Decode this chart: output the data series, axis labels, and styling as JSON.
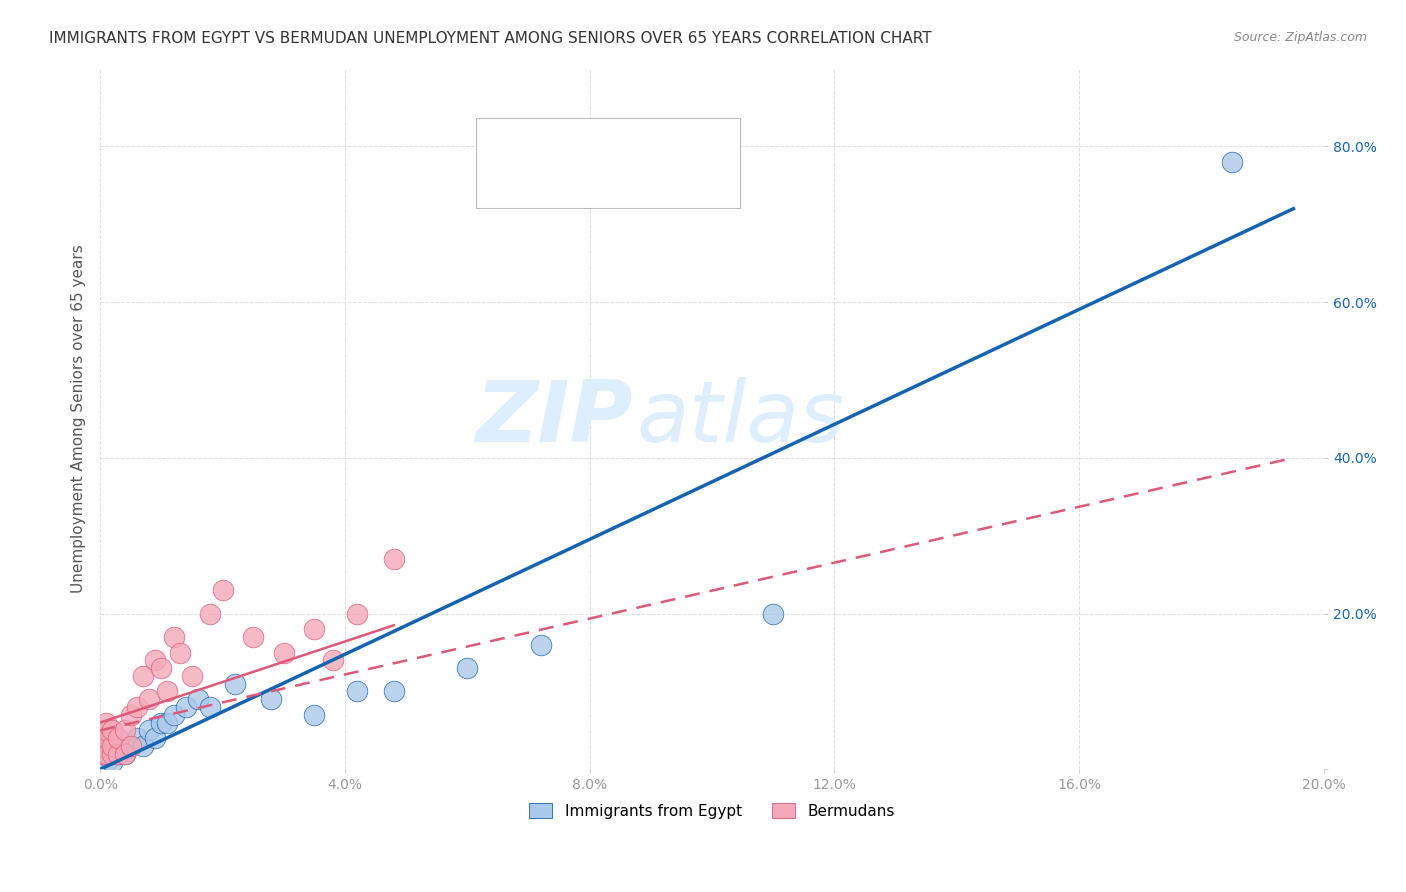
{
  "title": "IMMIGRANTS FROM EGYPT VS BERMUDAN UNEMPLOYMENT AMONG SENIORS OVER 65 YEARS CORRELATION CHART",
  "source": "Source: ZipAtlas.com",
  "ylabel": "Unemployment Among Seniors over 65 years",
  "xlim": [
    0.0,
    0.2
  ],
  "ylim": [
    0.0,
    0.9
  ],
  "xticks": [
    0.0,
    0.04,
    0.08,
    0.12,
    0.16,
    0.2
  ],
  "yticks": [
    0.0,
    0.2,
    0.4,
    0.6,
    0.8
  ],
  "ytick_labels": [
    "",
    "20.0%",
    "40.0%",
    "60.0%",
    "80.0%"
  ],
  "xtick_labels": [
    "0.0%",
    "4.0%",
    "8.0%",
    "12.0%",
    "16.0%",
    "20.0%"
  ],
  "legend_label1": "Immigrants from Egypt",
  "legend_label2": "Bermudans",
  "blue_scatter_x": [
    0.001,
    0.001,
    0.001,
    0.002,
    0.002,
    0.002,
    0.003,
    0.003,
    0.004,
    0.005,
    0.006,
    0.007,
    0.008,
    0.009,
    0.01,
    0.011,
    0.012,
    0.014,
    0.016,
    0.018,
    0.022,
    0.028,
    0.035,
    0.042,
    0.048,
    0.06,
    0.072,
    0.11,
    0.185
  ],
  "blue_scatter_y": [
    0.01,
    0.02,
    0.03,
    0.01,
    0.02,
    0.03,
    0.02,
    0.03,
    0.02,
    0.03,
    0.04,
    0.03,
    0.05,
    0.04,
    0.06,
    0.06,
    0.07,
    0.08,
    0.09,
    0.08,
    0.11,
    0.09,
    0.07,
    0.1,
    0.1,
    0.13,
    0.16,
    0.2,
    0.78
  ],
  "pink_scatter_x": [
    0.0005,
    0.0005,
    0.001,
    0.001,
    0.001,
    0.001,
    0.002,
    0.002,
    0.002,
    0.003,
    0.003,
    0.004,
    0.004,
    0.005,
    0.005,
    0.006,
    0.007,
    0.008,
    0.009,
    0.01,
    0.011,
    0.012,
    0.013,
    0.015,
    0.018,
    0.02,
    0.025,
    0.03,
    0.035,
    0.038,
    0.042,
    0.048
  ],
  "pink_scatter_y": [
    0.02,
    0.03,
    0.02,
    0.04,
    0.05,
    0.06,
    0.02,
    0.03,
    0.05,
    0.02,
    0.04,
    0.02,
    0.05,
    0.03,
    0.07,
    0.08,
    0.12,
    0.09,
    0.14,
    0.13,
    0.1,
    0.17,
    0.15,
    0.12,
    0.2,
    0.23,
    0.17,
    0.15,
    0.18,
    0.14,
    0.2,
    0.27
  ],
  "blue_line_x": [
    0.0,
    0.195
  ],
  "blue_line_y": [
    0.0,
    0.72
  ],
  "pink_line_x": [
    0.0,
    0.195
  ],
  "pink_line_y": [
    0.05,
    0.4
  ],
  "scatter_color_blue": "#aac8e8",
  "scatter_color_pink": "#f4a8b8",
  "line_color_blue": "#1464b4",
  "line_color_pink": "#e05878",
  "watermark_zip": "ZIP",
  "watermark_atlas": "atlas",
  "watermark_color": "#ddeeff",
  "background_color": "#ffffff",
  "grid_color": "#dddddd",
  "title_fontsize": 11,
  "axis_label_fontsize": 11,
  "tick_fontsize": 10,
  "source_fontsize": 9
}
